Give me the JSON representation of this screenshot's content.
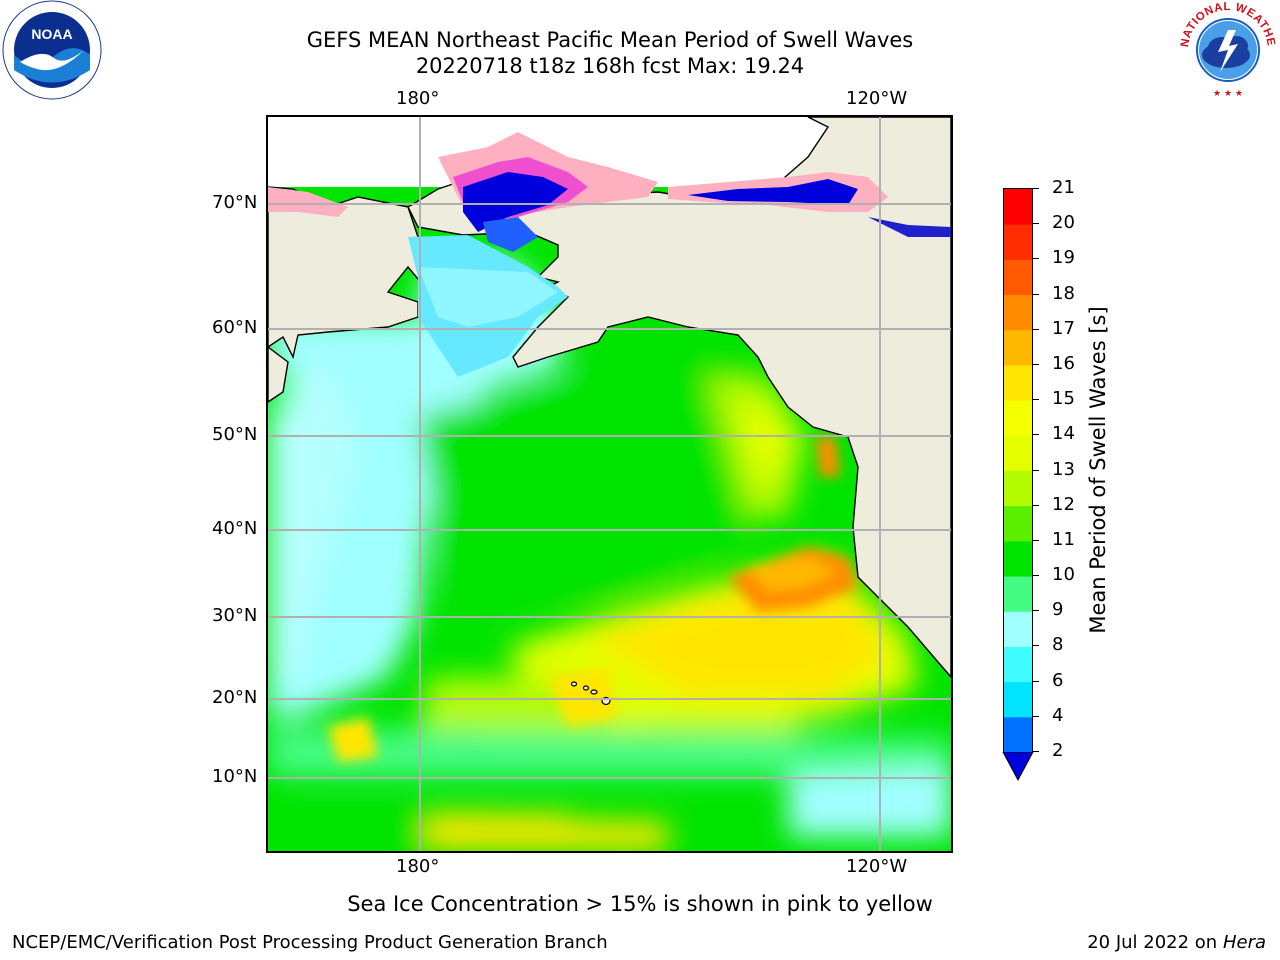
{
  "title": {
    "line1": "GEFS MEAN Northeast Pacific Mean Period of Swell Waves",
    "line2": "20220718 t18z 168h fcst   Max: 19.24"
  },
  "map": {
    "top_lon_labels": [
      "180°",
      "120°W"
    ],
    "bottom_lon_labels": [
      "180°",
      "120°W"
    ],
    "lat_labels": [
      "70°N",
      "60°N",
      "50°N",
      "40°N",
      "30°N",
      "20°N",
      "10°N"
    ],
    "colors": {
      "land": "#eeecdc",
      "grid": "#b0b0b0"
    }
  },
  "colorbar": {
    "title": "Mean Period of Swell Waves [s]",
    "tick_labels": [
      "21",
      "20",
      "19",
      "18",
      "17",
      "16",
      "15",
      "14",
      "13",
      "12",
      "11",
      "10",
      "9",
      "8",
      "6",
      "4",
      "2"
    ],
    "levels": [
      2,
      4,
      6,
      8,
      9,
      10,
      11,
      12,
      13,
      14,
      15,
      16,
      17,
      18,
      19,
      20,
      21
    ],
    "colors": [
      "#0000dd",
      "#0072ff",
      "#00e4ff",
      "#3ffaff",
      "#a0ffff",
      "#44fb84",
      "#00e400",
      "#5cf000",
      "#b4fa00",
      "#e4ff00",
      "#f4ff00",
      "#ffe600",
      "#ffb800",
      "#ff8c00",
      "#ff5a00",
      "#ff2d00",
      "#ff0000"
    ]
  },
  "note": "Sea Ice Concentration > 15% is shown in pink to yellow",
  "footer": {
    "left": "NCEP/EMC/Verification Post Processing Product Generation Branch",
    "right_prefix": "20 Jul 2022 on ",
    "right_host": "Hera"
  },
  "logos": {
    "noaa_text": "NOAA",
    "nws_text": "NATIONAL WEATHER SERVICE"
  }
}
